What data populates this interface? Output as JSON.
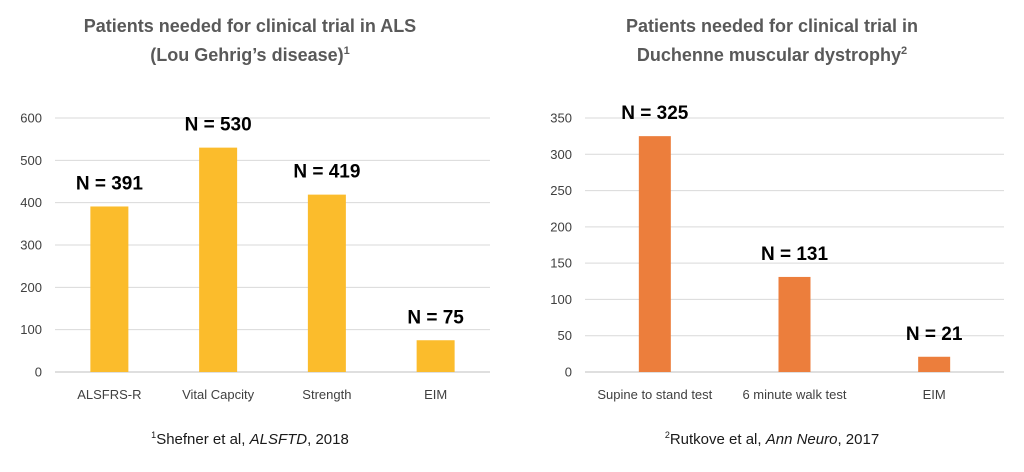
{
  "chart_data": [
    {
      "type": "bar",
      "title_line1": "Patients needed for clinical trial in ALS",
      "title_line2": "(Lou Gehrig’s disease)",
      "title_sup": "1",
      "categories": [
        "ALSFRS-R",
        "Vital Capcity",
        "Strength",
        "EIM"
      ],
      "values": [
        391,
        530,
        419,
        75
      ],
      "data_labels": [
        "N = 391",
        "N = 530",
        "N = 419",
        "N = 75"
      ],
      "ylim": [
        0,
        600
      ],
      "yticks": [
        0,
        100,
        200,
        300,
        400,
        500,
        600
      ],
      "grid": true,
      "color": "#FBBC2C",
      "footnote": {
        "sup": "1",
        "pre": "Shefner et al, ",
        "journal": "ALSFTD",
        "post": ", 2018"
      }
    },
    {
      "type": "bar",
      "title_line1": "Patients needed for clinical trial in",
      "title_line2": "Duchenne muscular dystrophy",
      "title_sup": "2",
      "categories": [
        "Supine to stand test",
        "6 minute walk test",
        "EIM"
      ],
      "values": [
        325,
        131,
        21
      ],
      "data_labels": [
        "N = 325",
        "N = 131",
        "N = 21"
      ],
      "ylim": [
        0,
        350
      ],
      "yticks": [
        0,
        50,
        100,
        150,
        200,
        250,
        300,
        350
      ],
      "grid": true,
      "color": "#EC7E3C",
      "footnote": {
        "sup": "2",
        "pre": "Rutkove et al, ",
        "journal": "Ann Neuro",
        "post": ", 2017"
      }
    }
  ]
}
